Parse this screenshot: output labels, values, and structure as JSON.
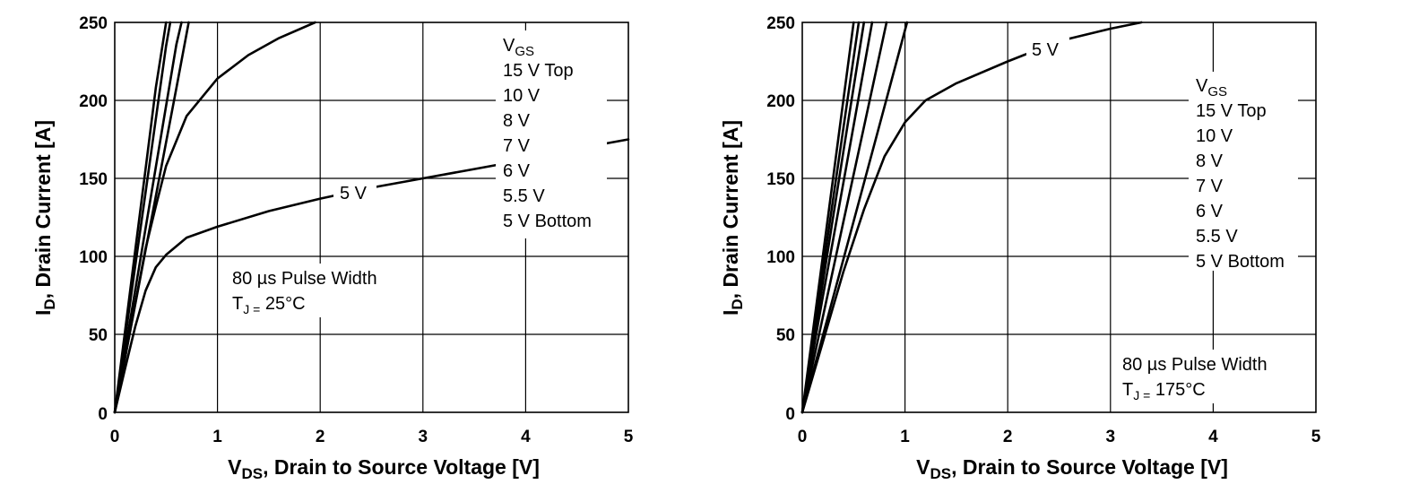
{
  "chart_data": [
    {
      "type": "line",
      "xlabel_main": "V",
      "xlabel_sub": "DS",
      "xlabel_rest": ", Drain to Source Voltage [V]",
      "ylabel_main": "I",
      "ylabel_sub": "D",
      "ylabel_rest": ", Drain Current [A]",
      "xlim": [
        0,
        5
      ],
      "ylim": [
        0,
        250
      ],
      "x_ticks": [
        "0",
        "1",
        "2",
        "3",
        "4",
        "5"
      ],
      "y_ticks": [
        "0",
        "50",
        "100",
        "150",
        "200",
        "250"
      ],
      "grid": true,
      "legend": {
        "title_main": "V",
        "title_sub": "GS",
        "entries": [
          "15 V Top",
          "10 V",
          "8 V",
          "7 V",
          "6 V",
          "5.5 V",
          "5 V Bottom"
        ]
      },
      "annotation": {
        "line1": "80 µs Pulse Width",
        "line2_main": "T",
        "line2_sub": "J =",
        "line2_rest": " 25°C"
      },
      "curve_label": "5 V",
      "series": [
        {
          "x": [
            0,
            0.1,
            0.2,
            0.3,
            0.4,
            0.5
          ],
          "y": [
            0,
            52,
            104,
            156,
            208,
            250
          ]
        },
        {
          "x": [
            0,
            0.1,
            0.2,
            0.3,
            0.4,
            0.5,
            0.54
          ],
          "y": [
            0,
            47,
            94,
            141,
            188,
            235,
            250
          ]
        },
        {
          "x": [
            0,
            0.15,
            0.3,
            0.45,
            0.6,
            0.65
          ],
          "y": [
            0,
            59,
            118,
            177,
            236,
            250
          ]
        },
        {
          "x": [
            0,
            0.15,
            0.3,
            0.45,
            0.6,
            0.72
          ],
          "y": [
            0,
            52,
            104,
            156,
            208,
            250
          ]
        },
        {
          "x": [
            0,
            0.1,
            0.2,
            0.3,
            0.4,
            0.5,
            0.7,
            1.0,
            1.3,
            1.6,
            1.95
          ],
          "y": [
            0,
            35,
            70,
            105,
            132,
            158,
            190,
            214,
            229,
            240,
            250
          ]
        },
        {
          "x": [
            0,
            0.1,
            0.2,
            0.3,
            0.4,
            0.5,
            0.7,
            1.0,
            1.5,
            2.0,
            2.5,
            3.0,
            3.5,
            4.0,
            4.5,
            5.0
          ],
          "y": [
            0,
            28,
            55,
            78,
            93,
            101,
            112,
            119,
            129,
            137,
            144,
            150,
            156,
            162,
            169,
            175
          ]
        }
      ]
    },
    {
      "type": "line",
      "xlabel_main": "V",
      "xlabel_sub": "DS",
      "xlabel_rest": ", Drain to Source Voltage [V]",
      "ylabel_main": "I",
      "ylabel_sub": "D",
      "ylabel_rest": ", Drain Current [A]",
      "xlim": [
        0,
        5
      ],
      "ylim": [
        0,
        250
      ],
      "x_ticks": [
        "0",
        "1",
        "2",
        "3",
        "4",
        "5"
      ],
      "y_ticks": [
        "0",
        "50",
        "100",
        "150",
        "200",
        "250"
      ],
      "grid": true,
      "legend": {
        "title_main": "V",
        "title_sub": "GS",
        "entries": [
          "15 V Top",
          "10 V",
          "8 V",
          "7 V",
          "6 V",
          "5.5 V",
          "5 V Bottom"
        ]
      },
      "annotation": {
        "line1": "80 µs Pulse Width",
        "line2_main": "T",
        "line2_sub": "J =",
        "line2_rest": " 175°C"
      },
      "curve_label": "5 V",
      "series": [
        {
          "x": [
            0,
            0.2,
            0.4,
            0.5
          ],
          "y": [
            0,
            100,
            200,
            250
          ]
        },
        {
          "x": [
            0,
            0.2,
            0.4,
            0.55
          ],
          "y": [
            0,
            91,
            182,
            250
          ]
        },
        {
          "x": [
            0,
            0.2,
            0.4,
            0.6
          ],
          "y": [
            0,
            83,
            167,
            250
          ]
        },
        {
          "x": [
            0,
            0.2,
            0.4,
            0.68
          ],
          "y": [
            0,
            74,
            147,
            250
          ]
        },
        {
          "x": [
            0,
            0.2,
            0.4,
            0.6,
            0.82
          ],
          "y": [
            0,
            61,
            122,
            183,
            250
          ]
        },
        {
          "x": [
            0,
            0.2,
            0.4,
            0.6,
            0.8,
            1.02
          ],
          "y": [
            0,
            49,
            98,
            147,
            196,
            250
          ]
        },
        {
          "x": [
            0,
            0.2,
            0.4,
            0.6,
            0.8,
            1.0,
            1.2,
            1.5,
            2.0,
            2.5,
            3.0,
            3.3
          ],
          "y": [
            0,
            45,
            90,
            130,
            164,
            186,
            200,
            211,
            225,
            238,
            246,
            250
          ]
        }
      ]
    }
  ]
}
